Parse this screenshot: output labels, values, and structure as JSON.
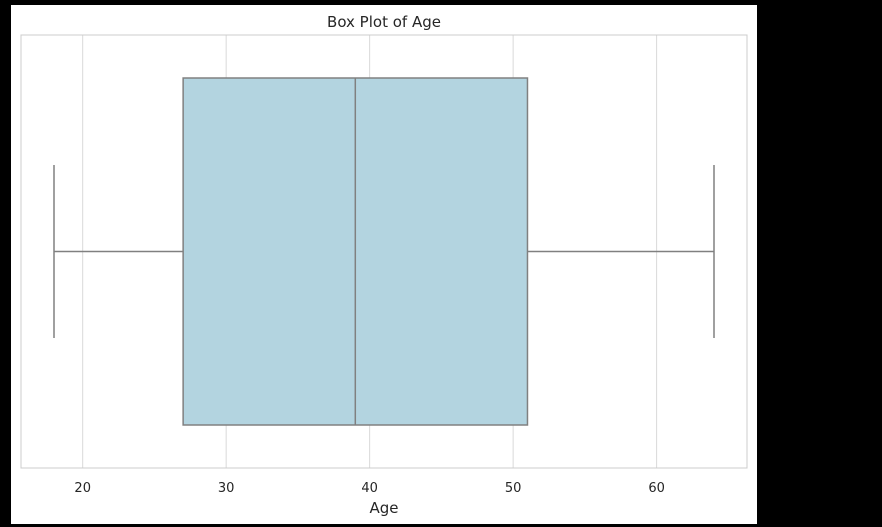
{
  "chart_data": {
    "type": "box",
    "title": "Box Plot of Age",
    "xlabel": "Age",
    "ylabel": "",
    "orientation": "horizontal",
    "xlim": [
      15.7,
      66.3
    ],
    "xticks": [
      20,
      30,
      40,
      50,
      60
    ],
    "grid": true,
    "box": {
      "whisker_low": 18,
      "q1": 27,
      "median": 39,
      "q3": 51,
      "whisker_high": 64
    },
    "colors": {
      "box_fill": "#b3d4e0",
      "line": "#808080",
      "grid": "#d9d9d9",
      "spine": "#cccccc"
    }
  }
}
